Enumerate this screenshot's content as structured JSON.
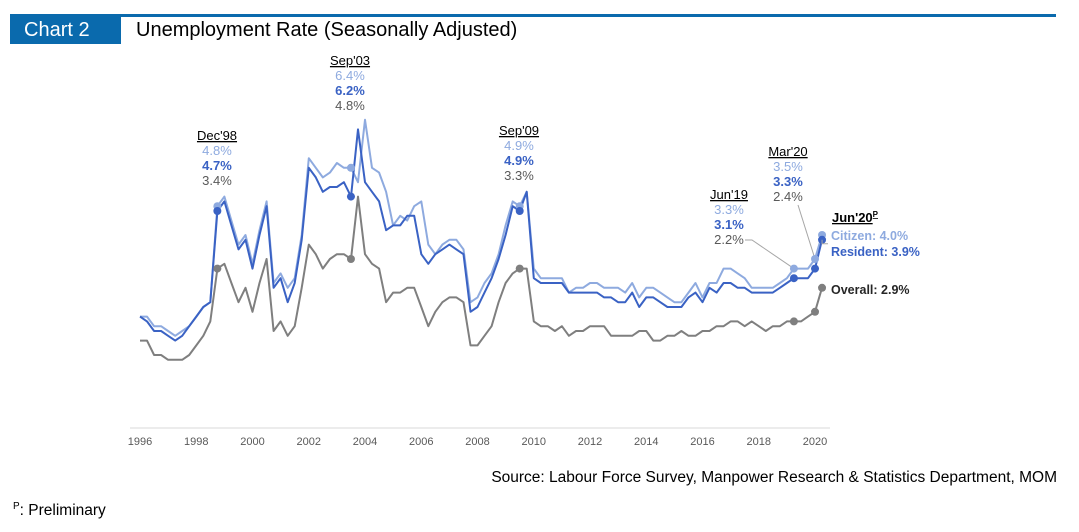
{
  "header": {
    "chart_tag": "Chart 2",
    "title": "Unemployment Rate (Seasonally Adjusted)"
  },
  "footer": {
    "source": "Source: Labour Force Survey, Manpower Research & Statistics Department, MOM",
    "footnote_mark": "P",
    "footnote_text": ": Preliminary"
  },
  "colors": {
    "brand": "#0a6aad",
    "citizen": "#8eaadf",
    "resident": "#3a62c4",
    "overall": "#7f7f7f",
    "axis": "#d9d9d9"
  },
  "chart_data": {
    "type": "line",
    "title": "Unemployment Rate (Seasonally Adjusted)",
    "xlabel": "",
    "ylabel": "",
    "x_start": 1996,
    "x_end": 2020.25,
    "frequency": "quarterly",
    "xticks": [
      "1996",
      "1998",
      "2000",
      "2002",
      "2004",
      "2006",
      "2008",
      "2010",
      "2012",
      "2014",
      "2016",
      "2018",
      "2020"
    ],
    "ylim": [
      0,
      7
    ],
    "grid": false,
    "legend": "inline-labels-right",
    "series": [
      {
        "name": "Citizen",
        "values": [
          2.3,
          2.3,
          2.1,
          2.1,
          2.0,
          1.9,
          2.0,
          2.1,
          2.3,
          2.5,
          2.6,
          4.6,
          4.8,
          4.3,
          3.8,
          4.0,
          3.4,
          4.1,
          4.7,
          3.0,
          3.2,
          2.9,
          3.1,
          4.0,
          5.6,
          5.4,
          5.2,
          5.3,
          5.5,
          5.4,
          5.4,
          5.1,
          6.4,
          5.4,
          5.3,
          4.9,
          4.2,
          4.4,
          4.3,
          4.6,
          4.7,
          3.8,
          3.6,
          3.8,
          3.9,
          3.9,
          3.7,
          2.6,
          2.7,
          3.0,
          3.2,
          3.6,
          4.2,
          4.7,
          4.6,
          4.9,
          3.3,
          3.1,
          3.1,
          3.1,
          3.1,
          2.8,
          2.9,
          2.9,
          3.0,
          3.0,
          2.9,
          2.9,
          2.9,
          2.8,
          3.0,
          2.7,
          2.9,
          2.9,
          2.8,
          2.7,
          2.6,
          2.6,
          2.8,
          3.0,
          2.7,
          3.0,
          3.0,
          3.3,
          3.3,
          3.2,
          3.1,
          2.9,
          2.9,
          2.9,
          2.9,
          3.0,
          3.1,
          3.3,
          3.3,
          3.3,
          3.5,
          4.0
        ]
      },
      {
        "name": "Resident",
        "values": [
          2.3,
          2.2,
          2.0,
          2.0,
          1.9,
          1.8,
          1.9,
          2.1,
          2.3,
          2.5,
          2.6,
          4.5,
          4.7,
          4.2,
          3.7,
          3.9,
          3.3,
          4.0,
          4.6,
          2.9,
          3.1,
          2.6,
          3.0,
          3.9,
          5.4,
          5.2,
          4.9,
          5.0,
          5.0,
          5.1,
          4.8,
          6.2,
          5.1,
          4.9,
          4.7,
          4.1,
          4.2,
          4.2,
          4.4,
          4.4,
          3.6,
          3.4,
          3.6,
          3.7,
          3.8,
          3.7,
          3.6,
          2.4,
          2.5,
          2.8,
          3.1,
          3.5,
          4.0,
          4.6,
          4.5,
          4.9,
          3.1,
          3.0,
          3.0,
          3.0,
          3.0,
          2.8,
          2.8,
          2.8,
          2.8,
          2.8,
          2.7,
          2.7,
          2.6,
          2.6,
          2.8,
          2.5,
          2.7,
          2.7,
          2.6,
          2.5,
          2.5,
          2.5,
          2.7,
          2.8,
          2.6,
          2.9,
          2.8,
          3.0,
          3.0,
          2.9,
          2.9,
          2.8,
          2.8,
          2.8,
          2.8,
          2.9,
          3.0,
          3.1,
          3.1,
          3.1,
          3.3,
          3.9
        ]
      },
      {
        "name": "Overall",
        "values": [
          1.8,
          1.8,
          1.5,
          1.5,
          1.4,
          1.4,
          1.4,
          1.5,
          1.7,
          1.9,
          2.2,
          3.3,
          3.4,
          3.0,
          2.6,
          2.9,
          2.4,
          3.0,
          3.5,
          2.0,
          2.2,
          1.9,
          2.1,
          2.9,
          3.8,
          3.6,
          3.3,
          3.5,
          3.6,
          3.6,
          3.5,
          4.8,
          3.6,
          3.4,
          3.3,
          2.6,
          2.8,
          2.8,
          2.9,
          2.9,
          2.5,
          2.1,
          2.4,
          2.6,
          2.7,
          2.7,
          2.6,
          1.7,
          1.7,
          1.9,
          2.1,
          2.6,
          3.0,
          3.2,
          3.3,
          3.3,
          2.2,
          2.1,
          2.1,
          2.0,
          2.1,
          1.9,
          2.0,
          2.0,
          2.1,
          2.1,
          2.1,
          1.9,
          1.9,
          1.9,
          1.9,
          2.0,
          2.0,
          1.8,
          1.8,
          1.9,
          1.9,
          2.0,
          1.9,
          1.9,
          2.0,
          2.0,
          2.1,
          2.1,
          2.2,
          2.2,
          2.1,
          2.2,
          2.1,
          2.0,
          2.1,
          2.1,
          2.2,
          2.2,
          2.2,
          2.3,
          2.4,
          2.9
        ]
      }
    ],
    "annotations": [
      {
        "label": "Dec'98",
        "quarter_index": 11,
        "citizen": "4.8%",
        "resident": "4.7%",
        "overall": "3.4%"
      },
      {
        "label": "Sep'03",
        "quarter_index": 30,
        "citizen": "6.4%",
        "resident": "6.2%",
        "overall": "4.8%"
      },
      {
        "label": "Sep'09",
        "quarter_index": 54,
        "citizen": "4.9%",
        "resident": "4.9%",
        "overall": "3.3%"
      },
      {
        "label": "Jun'19",
        "quarter_index": 93,
        "citizen": "3.3%",
        "resident": "3.1%",
        "overall": "2.2%"
      },
      {
        "label": "Mar'20",
        "quarter_index": 96,
        "citizen": "3.5%",
        "resident": "3.3%",
        "overall": "2.4%"
      }
    ],
    "end_labels": {
      "period": "Jun'20",
      "superscript": "P",
      "citizen": "Citizen: 4.0%",
      "resident": "Resident: 3.9%",
      "overall": "Overall: 2.9%"
    }
  }
}
